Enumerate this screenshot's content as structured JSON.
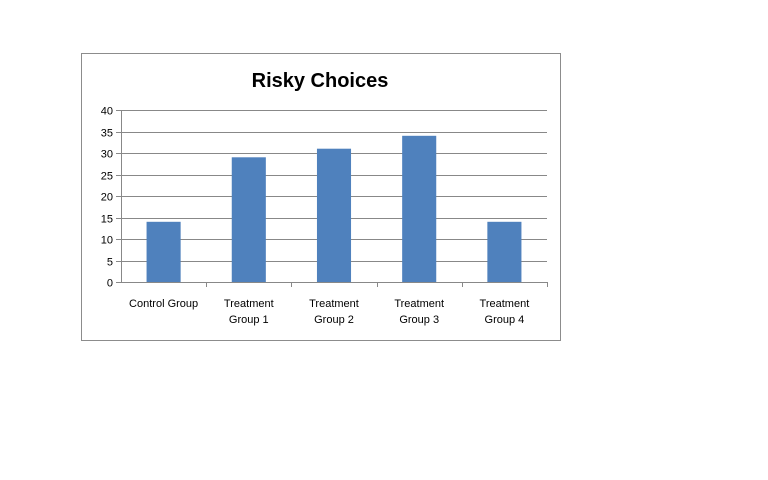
{
  "chart_data": {
    "type": "bar",
    "title": "Risky Choices",
    "xlabel": "",
    "ylabel": "",
    "categories": [
      [
        "Control Group"
      ],
      [
        "Treatment",
        "Group 1"
      ],
      [
        "Treatment",
        "Group 2"
      ],
      [
        "Treatment",
        "Group 3"
      ],
      [
        "Treatment",
        "Group 4"
      ]
    ],
    "values": [
      14,
      29,
      31,
      34,
      14
    ],
    "ylim": [
      0,
      40
    ],
    "yticks": [
      0,
      5,
      10,
      15,
      20,
      25,
      30,
      35,
      40
    ],
    "grid": true,
    "legend": "none",
    "bar_color": "#4f81bd",
    "grid_color": "#888888",
    "axis_color": "#888888"
  }
}
